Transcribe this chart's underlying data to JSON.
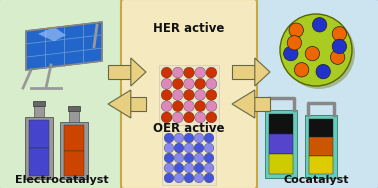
{
  "bg_color": "#e8e8e8",
  "left_panel_color": "#d8edcc",
  "right_panel_color": "#cce4f0",
  "center_panel_color": "#f5e9c0",
  "center_border_color": "#c8a840",
  "electrocatalyst_label": "Electrocatalyst",
  "cocatalyst_label": "Cocatalyst",
  "her_label": "HER active",
  "oer_label": "OER active",
  "arrow_color": "#e8d080",
  "arrow_edge_color": "#666644",
  "her_ball_color1": "#cc3300",
  "her_ball_color2": "#dd88bb",
  "oer_ball_color1": "#4455dd",
  "oer_ball_color2": "#8888ee",
  "sphere_yellow": "#aacc22",
  "sphere_orange": "#ee6600",
  "sphere_blue": "#2233cc",
  "solar_blue": "#2266cc",
  "solar_frame": "#aaaaaa",
  "electrode_gray": "#999999",
  "electrode_darkgray": "#666666",
  "elec_left_blue": "#4444cc",
  "elec_left_purple": "#9966cc",
  "elec_right_orange": "#cc4400",
  "elec_right_darkred": "#993300",
  "coc_teal": "#66ccbb",
  "coc_yellow": "#cccc00",
  "coc_purple": "#5544cc",
  "coc_black": "#111111",
  "coc_orange": "#cc5500",
  "coc_darkbrown": "#441100"
}
